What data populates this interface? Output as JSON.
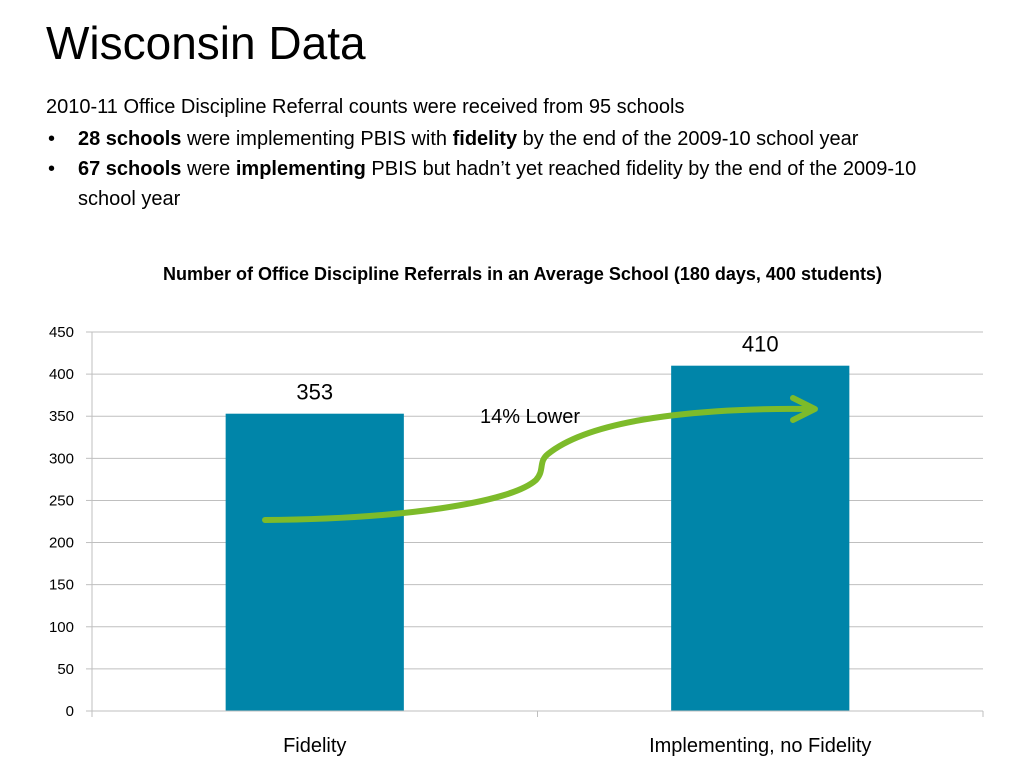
{
  "slide": {
    "title": "Wisconsin Data",
    "intro": "2010-11 Office Discipline Referral counts were received from 95 schools",
    "bullets": [
      {
        "bold1": "28 schools",
        "text1": " were implementing PBIS with ",
        "bold2": "fidelity",
        "text2": " by the end of the 2009-10 school year"
      },
      {
        "bold1": "67 schools",
        "text1": " were ",
        "bold2": "implementing",
        "text2": " PBIS but hadn’t yet reached fidelity by the end of the 2009-10 school year"
      }
    ]
  },
  "chart_data": {
    "type": "bar",
    "title": "Number of Office Discipline Referrals in an Average School (180 days, 400 students)",
    "categories": [
      "Fidelity",
      "Implementing, no Fidelity"
    ],
    "values": [
      353,
      410
    ],
    "data_labels": [
      "353",
      "410"
    ],
    "ylim": [
      0,
      450
    ],
    "yticks": [
      0,
      50,
      100,
      150,
      200,
      250,
      300,
      350,
      400,
      450
    ],
    "grid": true,
    "legend": "none",
    "bar_color": "#0085A9",
    "annotation": {
      "text": "14% Lower",
      "arrow_color": "#7DBB2A"
    }
  }
}
